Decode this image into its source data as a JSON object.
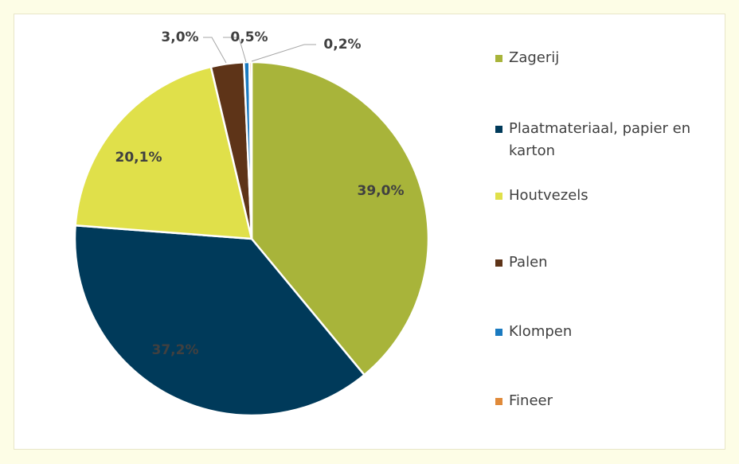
{
  "chart_data": {
    "type": "pie",
    "categories": [
      "Zagerij",
      "Plaatmateriaal, papier en karton",
      "Houtvezels",
      "Palen",
      "Klompen",
      "Fineer"
    ],
    "values": [
      39.0,
      37.2,
      20.1,
      3.0,
      0.5,
      0.2
    ],
    "value_labels": [
      "39,0%",
      "37,2%",
      "20,1%",
      "3,0%",
      "0,5%",
      "0,2%"
    ],
    "colors": [
      "#a8b43a",
      "#003a5a",
      "#e0e04a",
      "#5e3418",
      "#1a7ac0",
      "#e08a3a"
    ],
    "legend": "right"
  }
}
